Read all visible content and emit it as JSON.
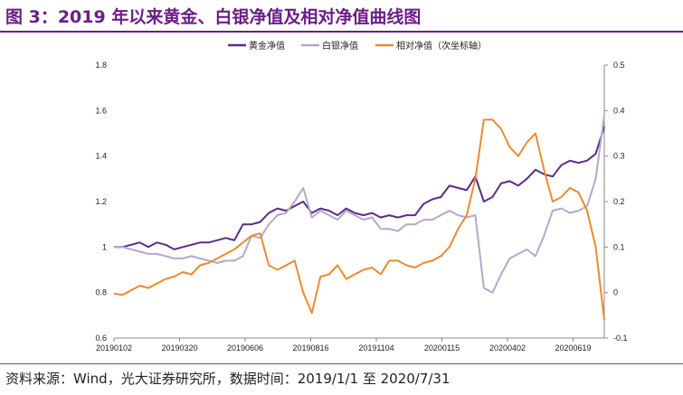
{
  "header": {
    "title": "图 3：2019 年以来黄金、白银净值及相对净值曲线图"
  },
  "footer": {
    "source": "资料来源：Wind，光大证券研究所，数据时间：2019/1/1 至 2020/7/31"
  },
  "colors": {
    "title": "#6B1E86",
    "gold": "#5B2C8A",
    "silver": "#B3A8CC",
    "relative": "#EE8A2E"
  },
  "chart_data": {
    "type": "line",
    "title": "",
    "x_axis": {
      "tick_labels": [
        "20190102",
        "20190320",
        "20190606",
        "20190816",
        "20191104",
        "20200115",
        "20200402",
        "20200619"
      ]
    },
    "y_left": {
      "min": 0.6,
      "max": 1.8,
      "ticks": [
        "0.6",
        "0.8",
        "1",
        "1.2",
        "1.4",
        "1.6",
        "1.8"
      ]
    },
    "y_right": {
      "min": -0.1,
      "max": 0.5,
      "ticks": [
        "-0.1",
        "0",
        "0.1",
        "0.2",
        "0.3",
        "0.4",
        "0.5"
      ]
    },
    "grid": false,
    "legend_position": "top-center",
    "x": [
      0,
      7,
      14,
      21,
      28,
      35,
      42,
      49,
      56,
      63,
      70,
      77,
      84,
      91,
      98,
      105,
      112,
      119,
      126,
      133,
      140,
      147,
      154,
      161,
      168,
      175,
      182,
      189,
      196,
      203,
      210,
      217,
      224,
      231,
      238,
      245,
      252,
      259,
      266,
      273,
      280,
      287,
      294,
      301,
      308,
      315,
      322,
      329,
      336,
      343,
      350,
      357,
      364,
      371,
      378,
      385,
      392,
      399
    ],
    "series": [
      {
        "name": "黄金净值",
        "axis": "left",
        "values": [
          1.0,
          1.0,
          1.01,
          1.02,
          1.0,
          1.02,
          1.01,
          0.99,
          1.0,
          1.01,
          1.02,
          1.02,
          1.03,
          1.04,
          1.03,
          1.1,
          1.1,
          1.11,
          1.15,
          1.17,
          1.16,
          1.18,
          1.2,
          1.15,
          1.17,
          1.16,
          1.14,
          1.17,
          1.15,
          1.14,
          1.15,
          1.13,
          1.14,
          1.13,
          1.14,
          1.14,
          1.19,
          1.21,
          1.22,
          1.27,
          1.26,
          1.25,
          1.31,
          1.2,
          1.22,
          1.28,
          1.29,
          1.27,
          1.3,
          1.34,
          1.32,
          1.31,
          1.36,
          1.38,
          1.37,
          1.38,
          1.41,
          1.53
        ]
      },
      {
        "name": "白银净值",
        "axis": "left",
        "values": [
          1.0,
          1.0,
          0.99,
          0.98,
          0.97,
          0.97,
          0.96,
          0.95,
          0.95,
          0.96,
          0.95,
          0.94,
          0.93,
          0.94,
          0.94,
          0.96,
          1.05,
          1.04,
          1.1,
          1.14,
          1.15,
          1.2,
          1.26,
          1.13,
          1.16,
          1.14,
          1.12,
          1.16,
          1.14,
          1.12,
          1.13,
          1.08,
          1.08,
          1.07,
          1.1,
          1.1,
          1.12,
          1.12,
          1.14,
          1.16,
          1.14,
          1.13,
          1.14,
          0.82,
          0.8,
          0.88,
          0.95,
          0.97,
          0.99,
          0.96,
          1.05,
          1.16,
          1.17,
          1.15,
          1.16,
          1.18,
          1.3,
          1.58
        ]
      },
      {
        "name": "相对净值（次坐标轴）",
        "axis": "right",
        "values": [
          -0.002,
          -0.005,
          0.005,
          0.015,
          0.01,
          0.02,
          0.03,
          0.035,
          0.045,
          0.04,
          0.06,
          0.065,
          0.075,
          0.085,
          0.095,
          0.11,
          0.125,
          0.13,
          0.06,
          0.05,
          0.06,
          0.07,
          0.0,
          -0.045,
          0.035,
          0.04,
          0.06,
          0.03,
          0.04,
          0.05,
          0.055,
          0.04,
          0.07,
          0.07,
          0.06,
          0.055,
          0.065,
          0.07,
          0.08,
          0.1,
          0.14,
          0.17,
          0.25,
          0.38,
          0.38,
          0.36,
          0.32,
          0.3,
          0.33,
          0.35,
          0.27,
          0.2,
          0.21,
          0.23,
          0.22,
          0.18,
          0.1,
          -0.06
        ]
      }
    ]
  }
}
